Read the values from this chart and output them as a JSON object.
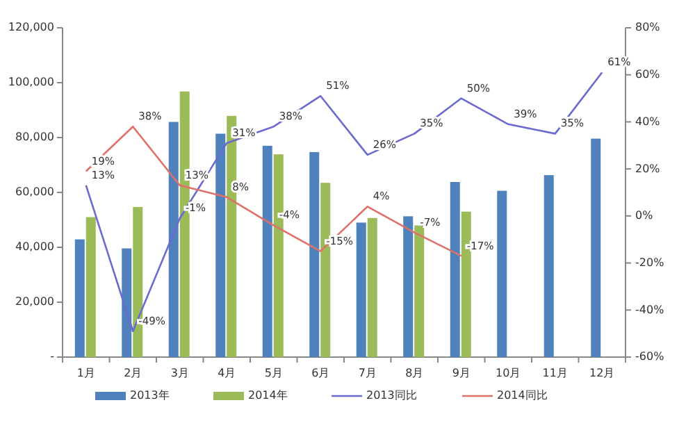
{
  "chart_data": {
    "type": "bar",
    "categories": [
      "1月",
      "2月",
      "3月",
      "4月",
      "5月",
      "6月",
      "7月",
      "8月",
      "9月",
      "10月",
      "11月",
      "12月"
    ],
    "series": [
      {
        "name": "2013年",
        "color": "#4f81bd",
        "values": [
          42900,
          39600,
          85700,
          81400,
          77000,
          74700,
          49000,
          51300,
          63800,
          60600,
          66300,
          79600
        ]
      },
      {
        "name": "2014年",
        "color": "#9bbb59",
        "values": [
          51000,
          54700,
          96800,
          87900,
          73900,
          63500,
          50700,
          48000,
          53000,
          null,
          null,
          null
        ]
      },
      {
        "name": "2013同比",
        "type": "line",
        "axis": "y2",
        "color": "#6a6ad0",
        "values": [
          13,
          -49,
          -1,
          31,
          38,
          51,
          26,
          35,
          50,
          39,
          35,
          61
        ],
        "value_labels": [
          "13%",
          "-49%",
          "-1%",
          "31%",
          "38%",
          "51%",
          "26%",
          "35%",
          "50%",
          "39%",
          "35%",
          "61%"
        ]
      },
      {
        "name": "2014同比",
        "type": "line",
        "axis": "y2",
        "color": "#e0706a",
        "values": [
          19,
          38,
          13,
          8,
          -4,
          -15,
          4,
          -7,
          -17,
          null,
          null,
          null
        ],
        "value_labels": [
          "19%",
          "38%",
          "13%",
          "8%",
          "-4%",
          "-15%",
          "4%",
          "-7%",
          "-17%",
          null,
          null,
          null
        ]
      }
    ],
    "ylim": [
      0,
      120000
    ],
    "yticks": [
      {
        "value": 0,
        "label": "-"
      },
      {
        "value": 20000,
        "label": "20,000"
      },
      {
        "value": 40000,
        "label": "40,000"
      },
      {
        "value": 60000,
        "label": "60,000"
      },
      {
        "value": 80000,
        "label": "80,000"
      },
      {
        "value": 100000,
        "label": "100,000"
      },
      {
        "value": 120000,
        "label": "120,000"
      }
    ],
    "y2lim": [
      -60,
      80
    ],
    "y2ticks": [
      {
        "value": -60,
        "label": "-60%"
      },
      {
        "value": -40,
        "label": "-40%"
      },
      {
        "value": -20,
        "label": "-20%"
      },
      {
        "value": 0,
        "label": "0%"
      },
      {
        "value": 20,
        "label": "20%"
      },
      {
        "value": 40,
        "label": "40%"
      },
      {
        "value": 60,
        "label": "60%"
      },
      {
        "value": 80,
        "label": "80%"
      }
    ],
    "legend": "bottom",
    "grid": false
  }
}
